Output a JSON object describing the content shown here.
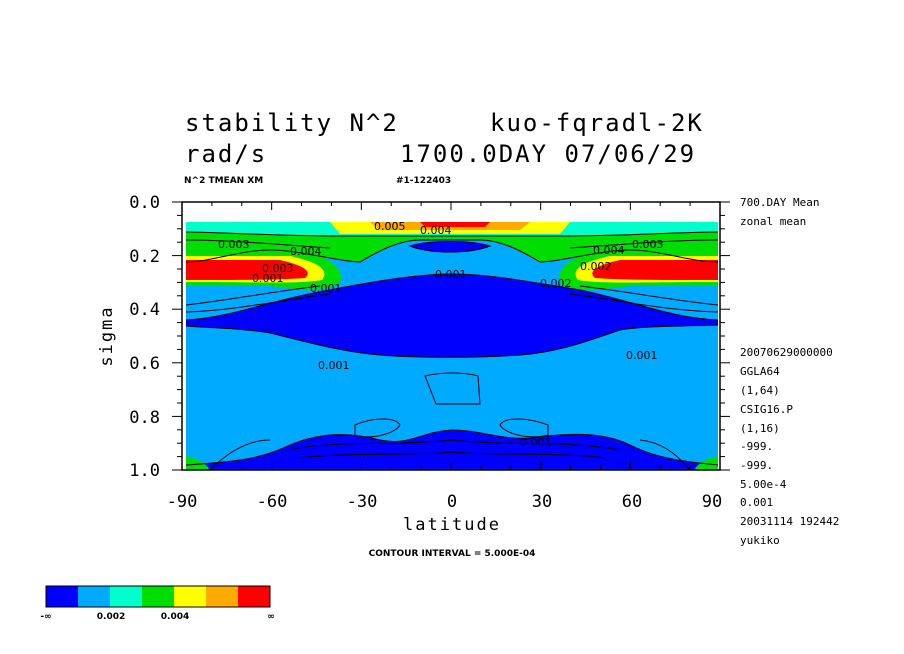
{
  "header": {
    "title_left_1": "stability N^2",
    "title_right_1": "kuo-fqradl-2K",
    "title_left_2": "rad/s",
    "title_right_2": "1700.0DAY 07/06/29",
    "sub_left": "N^2 TMEAN XM",
    "sub_right": "#1-122403"
  },
  "right_info": {
    "top": [
      "700.DAY Mean",
      "zonal mean"
    ],
    "bottom": [
      "20070629000000",
      "GGLA64",
      "(1,64)",
      "CSIG16.P",
      "(1,16)",
      "-999.",
      "-999.",
      "5.00e-4",
      "0.001",
      "20031114 192442",
      "yukiko"
    ]
  },
  "footer": {
    "contour_interval": "CONTOUR INTERVAL = 5.000E-04"
  },
  "colorbar": {
    "colors": [
      "#0000ff",
      "#00aaff",
      "#00ffcc",
      "#00dd00",
      "#ffff00",
      "#ffaa00",
      "#ff0000"
    ],
    "labels": [
      "-∞",
      "0.002",
      "0.004",
      "∞"
    ]
  },
  "chart_data": {
    "type": "contour",
    "xlabel": "latitude",
    "ylabel": "sigma",
    "xlim": [
      -90,
      90
    ],
    "ylim": [
      1.0,
      0.0
    ],
    "x_ticks": [
      "-90",
      "-60",
      "-30",
      "0",
      "30",
      "60",
      "90"
    ],
    "y_ticks": [
      "0.0",
      "0.2",
      "0.4",
      "0.6",
      "0.8",
      "1.0"
    ],
    "contour_labels": [
      "0.003",
      "0.004",
      "0.001",
      "0.002",
      "0.001",
      "0.003",
      "0.004",
      "0.003",
      "0.002",
      "0.001",
      "0.001",
      "0.001",
      "0.001",
      "0.005",
      "0.004"
    ],
    "levels": {
      "interval": 0.0005,
      "min": 0.0005
    }
  }
}
